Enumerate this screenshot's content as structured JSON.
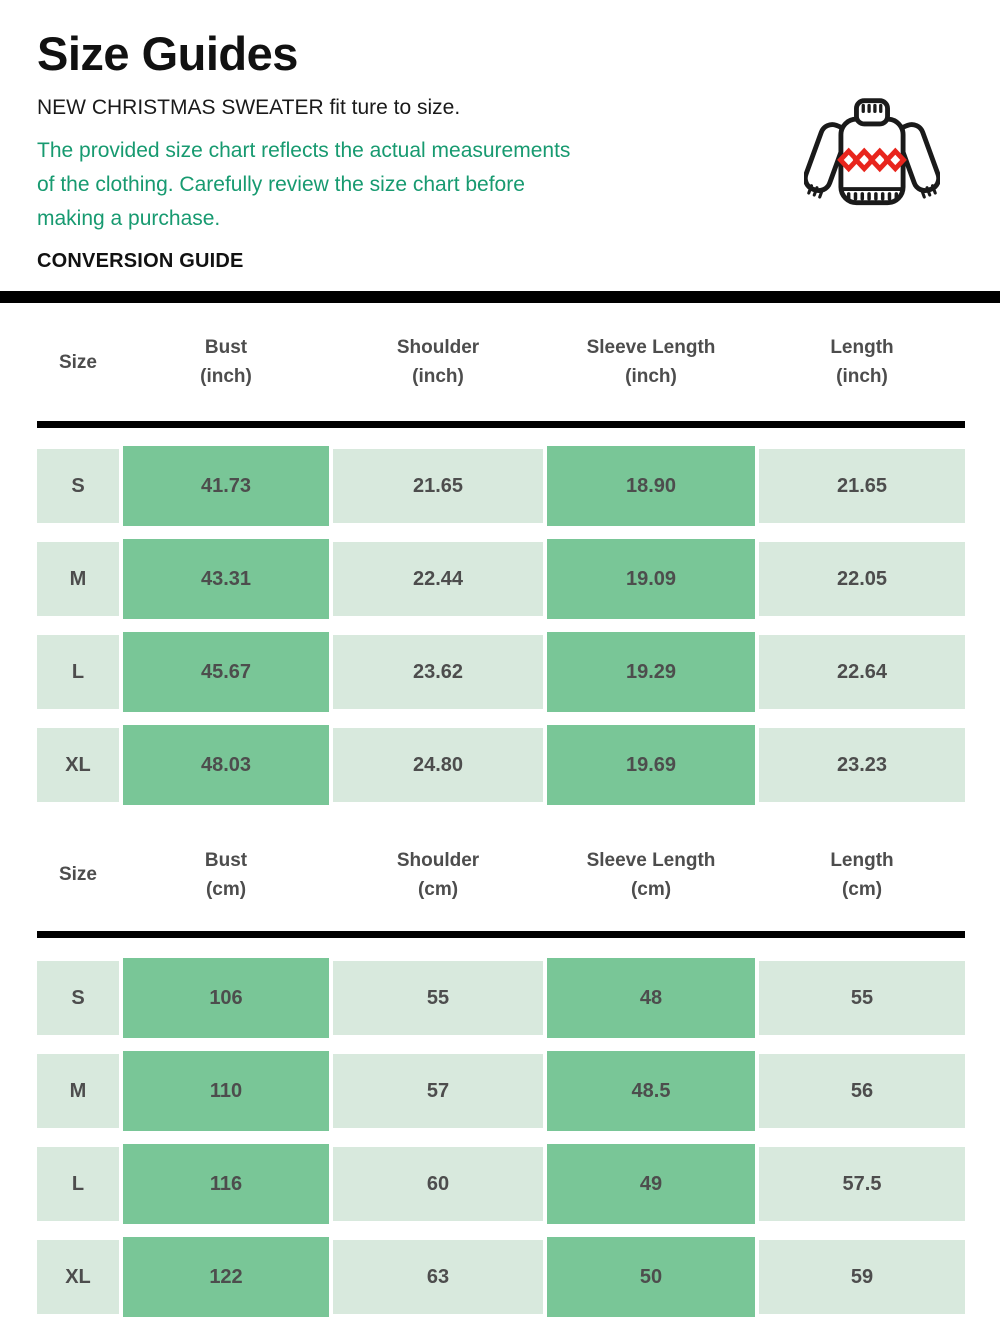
{
  "page": {
    "title": "Size Guides",
    "subtitle": "NEW CHRISTMAS SWEATER fit ture to size.",
    "note_lines": [
      "The provided size chart reflects the actual measurements",
      "of the clothing. Carefully review the size chart before",
      "making a purchase."
    ],
    "section_label": "CONVERSION GUIDE"
  },
  "icon": {
    "name": "christmas-sweater-icon"
  },
  "colors": {
    "green_text": "#179a70",
    "cell_light": "#d8e9dd",
    "cell_dark": "#79c697",
    "table_text": "#4d4d4d",
    "divider": "#000000",
    "sweater_outline": "#1a1a1a",
    "sweater_accent_red": "#e8251d"
  },
  "tables": [
    {
      "name": "inches",
      "columns": [
        {
          "label": "Size",
          "unit": ""
        },
        {
          "label": "Bust",
          "unit": "(inch)"
        },
        {
          "label": "Shoulder",
          "unit": "(inch)"
        },
        {
          "label": "Sleeve Length",
          "unit": "(inch)"
        },
        {
          "label": "Length",
          "unit": "(inch)"
        }
      ],
      "rows": [
        {
          "size": "S",
          "values": [
            "41.73",
            "21.65",
            "18.90",
            "21.65"
          ]
        },
        {
          "size": "M",
          "values": [
            "43.31",
            "22.44",
            "19.09",
            "22.05"
          ]
        },
        {
          "size": "L",
          "values": [
            "45.67",
            "23.62",
            "19.29",
            "22.64"
          ]
        },
        {
          "size": "XL",
          "values": [
            "48.03",
            "24.80",
            "19.69",
            "23.23"
          ]
        }
      ]
    },
    {
      "name": "centimeters",
      "columns": [
        {
          "label": "Size",
          "unit": ""
        },
        {
          "label": "Bust",
          "unit": "(cm)"
        },
        {
          "label": "Shoulder",
          "unit": "(cm)"
        },
        {
          "label": "Sleeve Length",
          "unit": "(cm)"
        },
        {
          "label": "Length",
          "unit": "(cm)"
        }
      ],
      "rows": [
        {
          "size": "S",
          "values": [
            "106",
            "55",
            "48",
            "55"
          ]
        },
        {
          "size": "M",
          "values": [
            "110",
            "57",
            "48.5",
            "56"
          ]
        },
        {
          "size": "L",
          "values": [
            "116",
            "60",
            "49",
            "57.5"
          ]
        },
        {
          "size": "XL",
          "values": [
            "122",
            "63",
            "50",
            "59"
          ]
        }
      ]
    }
  ]
}
